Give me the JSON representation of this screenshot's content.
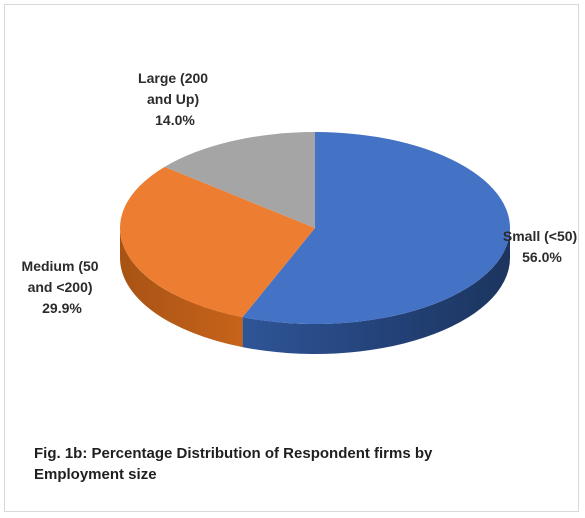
{
  "chart_data": {
    "type": "pie",
    "title": "Fig. 1b: Percentage Distribution of Respondent firms by Employment size",
    "slices": [
      {
        "name": "Small (<50)",
        "value": 56.0,
        "display": "56.0%",
        "color": "#4472c4"
      },
      {
        "name": "Medium (50 and <200)",
        "value": 29.9,
        "display": "29.9%",
        "color": "#ed7d31"
      },
      {
        "name": "Large (200 and Up)",
        "value": 14.0,
        "display": "14.0%",
        "color": "#a5a5a5"
      }
    ],
    "labels": [
      {
        "lines": [
          "Small (<50)",
          "56.0%"
        ]
      },
      {
        "lines": [
          "Medium (50",
          "and <200)",
          "29.9%"
        ]
      },
      {
        "lines": [
          "Large (200",
          "and Up)",
          "14.0%"
        ]
      }
    ],
    "caption_lines": [
      "Fig. 1b: Percentage Distribution of Respondent firms by",
      "Employment size"
    ]
  }
}
